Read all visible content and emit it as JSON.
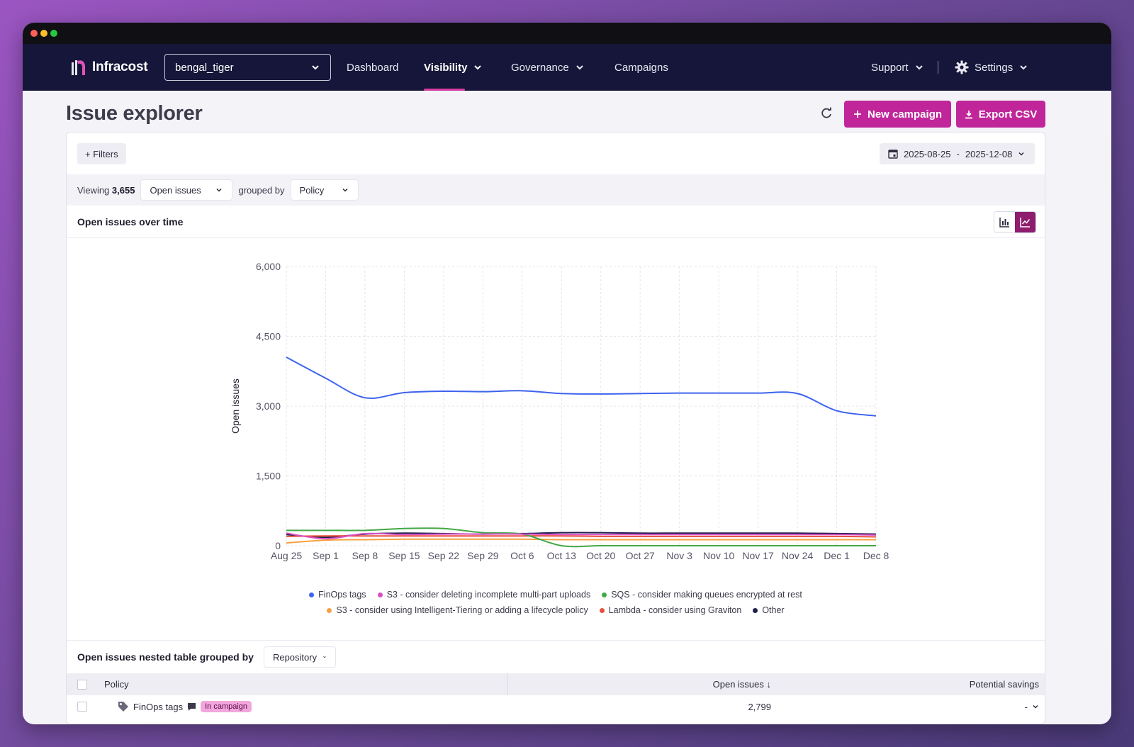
{
  "nav": {
    "logo_text": "Infracost",
    "org": "bengal_tiger",
    "items": [
      "Dashboard",
      "Visibility",
      "Governance",
      "Campaigns"
    ],
    "support": "Support",
    "settings": "Settings"
  },
  "page": {
    "title": "Issue explorer",
    "new_campaign": "New campaign",
    "export_csv": "Export CSV"
  },
  "filters": {
    "label": "+ Filters",
    "date_start": "2025-08-25",
    "date_sep": "-",
    "date_end": "2025-12-08"
  },
  "viewing": {
    "prefix": "Viewing",
    "count": "3,655",
    "metric": "Open issues",
    "grouped_by": "grouped by",
    "group": "Policy"
  },
  "chart_title": "Open issues over time",
  "chart_data": {
    "type": "line",
    "ylabel": "Open issues",
    "ylim": [
      0,
      6000
    ],
    "yticks": [
      "0",
      "1,500",
      "3,000",
      "4,500",
      "6,000"
    ],
    "categories": [
      "Aug 25",
      "Sep 1",
      "Sep 8",
      "Sep 15",
      "Sep 22",
      "Sep 29",
      "Oct 6",
      "Oct 13",
      "Oct 20",
      "Oct 27",
      "Nov 3",
      "Nov 10",
      "Nov 17",
      "Nov 24",
      "Dec 1",
      "Dec 8"
    ],
    "series": [
      {
        "name": "FinOps tags",
        "color": "#3d63ee",
        "values": [
          4050,
          3600,
          3180,
          3290,
          3320,
          3310,
          3330,
          3270,
          3260,
          3270,
          3280,
          3280,
          3280,
          3270,
          2900,
          2790
        ]
      },
      {
        "name": "S3 - consider deleting incomplete multi-part uploads",
        "color": "#d94fc6",
        "values": [
          270,
          150,
          260,
          240,
          250,
          250,
          250,
          240,
          240,
          240,
          240,
          240,
          240,
          240,
          240,
          230
        ]
      },
      {
        "name": "SQS - consider making queues encrypted at rest",
        "color": "#43a845",
        "values": [
          330,
          330,
          330,
          370,
          370,
          280,
          250,
          0,
          0,
          0,
          0,
          0,
          0,
          0,
          0,
          0
        ]
      },
      {
        "name": "S3 - consider using Intelligent-Tiering or adding a lifecycle policy",
        "color": "#f5a142",
        "values": [
          60,
          120,
          130,
          140,
          140,
          140,
          140,
          130,
          130,
          130,
          130,
          130,
          130,
          130,
          130,
          130
        ]
      },
      {
        "name": "Lambda - consider using Graviton",
        "color": "#e8503f",
        "values": [
          200,
          210,
          210,
          210,
          210,
          210,
          210,
          210,
          200,
          200,
          200,
          200,
          200,
          200,
          200,
          190
        ]
      },
      {
        "name": "Other",
        "color": "#1f1f4e",
        "values": [
          240,
          180,
          250,
          270,
          260,
          250,
          260,
          280,
          280,
          270,
          270,
          270,
          270,
          270,
          260,
          250
        ]
      }
    ]
  },
  "table": {
    "title": "Open issues nested table grouped by",
    "group": "Repository",
    "columns": {
      "policy": "Policy",
      "open_issues": "Open issues ↓",
      "savings": "Potential savings"
    },
    "rows": [
      {
        "policy": "FinOps tags",
        "badge": "In campaign",
        "open_issues": "2,799",
        "savings": "-"
      }
    ]
  }
}
